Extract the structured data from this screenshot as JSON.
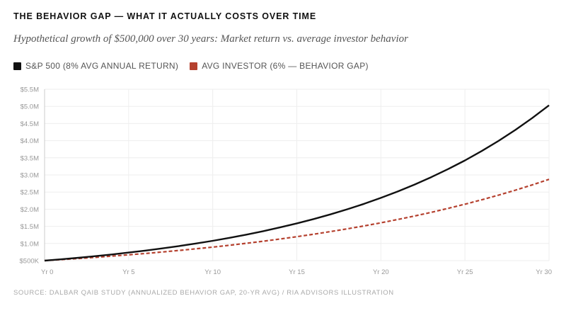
{
  "chart_data": {
    "type": "line",
    "title": "THE BEHAVIOR GAP — WHAT IT ACTUALLY COSTS OVER TIME",
    "subtitle": "Hypothetical growth of $500,000 over 30 years: Market return vs. average investor behavior",
    "xlabel": "",
    "ylabel": "",
    "xlim": [
      0,
      30
    ],
    "ylim": [
      500000,
      5500000
    ],
    "grid": true,
    "legend_placement": "top-left",
    "x_ticks": [
      {
        "value": 0,
        "label": "Yr 0"
      },
      {
        "value": 5,
        "label": "Yr 5"
      },
      {
        "value": 10,
        "label": "Yr 10"
      },
      {
        "value": 15,
        "label": "Yr 15"
      },
      {
        "value": 20,
        "label": "Yr 20"
      },
      {
        "value": 25,
        "label": "Yr 25"
      },
      {
        "value": 30,
        "label": "Yr 30"
      }
    ],
    "y_ticks": [
      {
        "value": 500000,
        "label": "$500K"
      },
      {
        "value": 1000000,
        "label": "$1.0M"
      },
      {
        "value": 1500000,
        "label": "$1.5M"
      },
      {
        "value": 2000000,
        "label": "$2.0M"
      },
      {
        "value": 2500000,
        "label": "$2.5M"
      },
      {
        "value": 3000000,
        "label": "$3.0M"
      },
      {
        "value": 3500000,
        "label": "$3.5M"
      },
      {
        "value": 4000000,
        "label": "$4.0M"
      },
      {
        "value": 4500000,
        "label": "$4.5M"
      },
      {
        "value": 5000000,
        "label": "$5.0M"
      },
      {
        "value": 5500000,
        "label": "$5.5M"
      }
    ],
    "x": [
      0,
      1,
      2,
      3,
      4,
      5,
      6,
      7,
      8,
      9,
      10,
      11,
      12,
      13,
      14,
      15,
      16,
      17,
      18,
      19,
      20,
      21,
      22,
      23,
      24,
      25,
      26,
      27,
      28,
      29,
      30
    ],
    "series": [
      {
        "name": "S&P 500 (8% AVG ANNUAL RETURN)",
        "color": "#111111",
        "style": "solid",
        "values": [
          500000,
          540000,
          583200,
          629856,
          680244,
          734664,
          793437,
          856912,
          925465,
          999502,
          1079462,
          1165819,
          1259085,
          1359812,
          1468597,
          1586085,
          1712971,
          1850009,
          1998010,
          2157851,
          2330479,
          2516918,
          2718271,
          2935733,
          3170592,
          3424239,
          3698178,
          3994033,
          4313555,
          4658640,
          5031331
        ]
      },
      {
        "name": "AVG INVESTOR (6% — BEHAVIOR GAP)",
        "color": "#b5412f",
        "style": "dashed",
        "values": [
          500000,
          530000,
          561800,
          595508,
          631238,
          669113,
          709260,
          751815,
          796924,
          844739,
          895424,
          949149,
          1006098,
          1066464,
          1130452,
          1198279,
          1270176,
          1346386,
          1427169,
          1512799,
          1603567,
          1699781,
          1801768,
          1909874,
          2024466,
          2145934,
          2274690,
          2411171,
          2555841,
          2709192,
          2871744
        ]
      }
    ],
    "source": "SOURCE: DALBAR QAIB STUDY (ANNUALIZED BEHAVIOR GAP, 20-YR AVG) / RIA ADVISORS ILLUSTRATION"
  }
}
